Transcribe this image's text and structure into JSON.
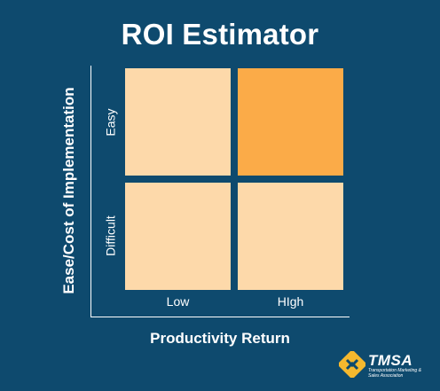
{
  "title": "ROI Estimator",
  "axes": {
    "x_label": "Productivity Return",
    "y_label": "Ease/Cost of Implementation",
    "x_ticks": [
      "Low",
      "HIgh"
    ],
    "y_ticks": [
      "Easy",
      "Difficult"
    ]
  },
  "quadrants": [
    {
      "row": "Easy",
      "col": "Low",
      "color": "#fdd9aa"
    },
    {
      "row": "Easy",
      "col": "HIgh",
      "color": "#fbab48"
    },
    {
      "row": "Difficult",
      "col": "Low",
      "color": "#fdd9aa"
    },
    {
      "row": "Difficult",
      "col": "HIgh",
      "color": "#fdd9aa"
    }
  ],
  "colors": {
    "background": "#0e4a6e",
    "axis": "#ffffff",
    "logo_accent": "#f5b82e"
  },
  "logo": {
    "icon": "tmsa-logo-mark-icon",
    "name": "TMSA",
    "tagline": "Transportation Marketing & Sales Association"
  }
}
